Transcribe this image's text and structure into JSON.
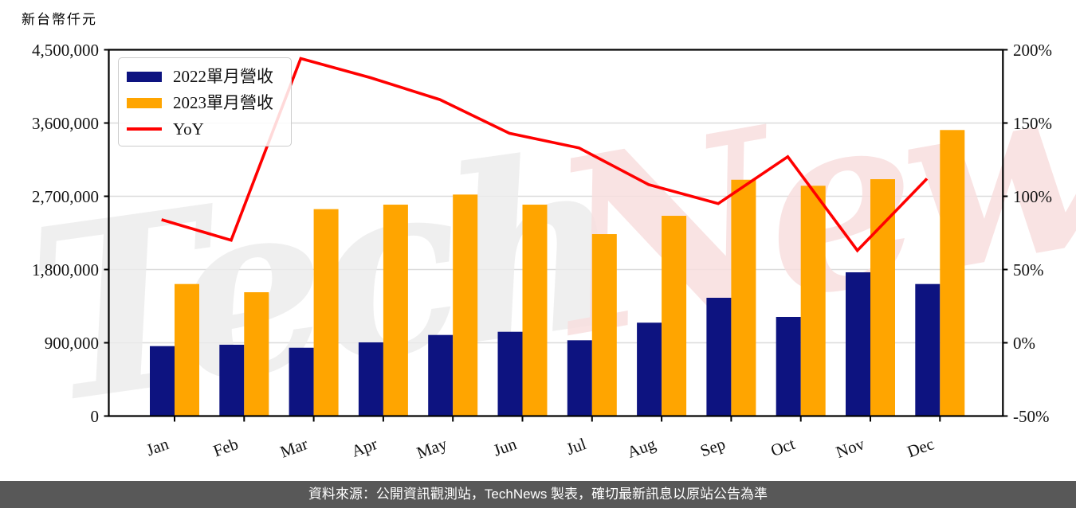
{
  "title": "新台幣仟元",
  "watermark": {
    "left_word": "Tech",
    "right_word": "News"
  },
  "legend": {
    "items": [
      {
        "label": "2022單月營收",
        "color": "#0D1380",
        "swatch": "box"
      },
      {
        "label": "2023單月營收",
        "color": "#FFA500",
        "swatch": "box"
      },
      {
        "label": "YoY",
        "color": "#FF0000",
        "swatch": "line"
      }
    ]
  },
  "footer": {
    "text": "資料來源：公開資訊觀測站，TechNews 製表，確切最新訊息以原站公告為準"
  },
  "colors": {
    "bar_2022": "#0D1380",
    "bar_2023": "#FFA500",
    "yoy_line": "#FF0000",
    "gridline": "#DBDBDB",
    "spine": "#000000",
    "watermark_gray": "#ECECEC",
    "watermark_pink": "#F8DFDF",
    "footer_bg": "#585858"
  },
  "chart_data": {
    "type": "bar",
    "subtype": "grouped bars with secondary-axis line",
    "title": "新台幣仟元",
    "categories": [
      "Jan",
      "Feb",
      "Mar",
      "Apr",
      "May",
      "Jun",
      "Jul",
      "Aug",
      "Sep",
      "Oct",
      "Nov",
      "Dec"
    ],
    "series": [
      {
        "name": "2022單月營收",
        "type": "bar",
        "yaxis": "left",
        "color": "#0D1380",
        "values": [
          859000,
          876000,
          839000,
          905000,
          996000,
          1035000,
          931000,
          1147000,
          1453000,
          1218000,
          1766000,
          1622000
        ]
      },
      {
        "name": "2023單月營收",
        "type": "bar",
        "yaxis": "left",
        "color": "#FFA500",
        "values": [
          1622000,
          1521000,
          2542000,
          2597000,
          2721000,
          2597000,
          2235000,
          2460000,
          2903000,
          2829000,
          2910000,
          3514000
        ]
      },
      {
        "name": "YoY",
        "type": "line",
        "yaxis": "right",
        "color": "#FF0000",
        "unit": "%",
        "values": [
          84,
          70,
          194,
          181,
          166,
          143,
          133,
          108,
          95,
          127,
          63,
          112
        ]
      }
    ],
    "left_axis": {
      "title": "新台幣仟元",
      "min": 0,
      "max": 4500000,
      "tick_values": [
        0,
        900000,
        1800000,
        2700000,
        3600000,
        4500000
      ],
      "tick_labels": [
        "0",
        "900,000",
        "1,800,000",
        "2,700,000",
        "3,600,000",
        "4,500,000"
      ]
    },
    "right_axis": {
      "min": -50,
      "max": 200,
      "unit": "%",
      "tick_values": [
        -50,
        0,
        50,
        100,
        150,
        200
      ],
      "tick_labels": [
        "-50%",
        "0%",
        "50%",
        "100%",
        "150%",
        "200%"
      ]
    },
    "grid": "horizontal",
    "legend_position": "upper-left"
  }
}
